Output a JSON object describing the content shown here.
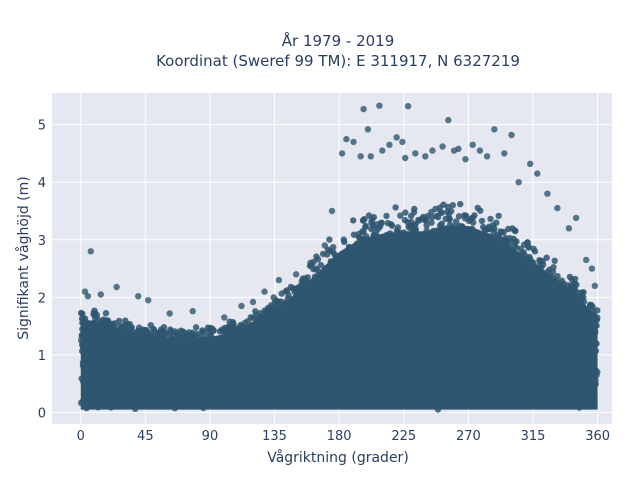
{
  "chart_data": {
    "type": "scatter",
    "title": "År 1979 - 2019",
    "subtitle": "Koordinat (Sweref 99 TM): E 311917, N 6327219",
    "xlabel": "Vågriktning (grader)",
    "ylabel": "Signifikant våghöjd (m)",
    "xlim": [
      -20,
      370
    ],
    "ylim": [
      -0.2,
      5.55
    ],
    "x_ticks": [
      0,
      45,
      90,
      135,
      180,
      225,
      270,
      315,
      360
    ],
    "y_ticks": [
      0,
      1,
      2,
      3,
      4,
      5
    ],
    "grid": true,
    "legend": "none",
    "marker_color": "#2f5670",
    "plot_bg": "#e5e8f0",
    "envelope": {
      "x": [
        0,
        15,
        30,
        45,
        60,
        75,
        90,
        105,
        120,
        135,
        150,
        165,
        180,
        195,
        210,
        225,
        240,
        255,
        270,
        285,
        300,
        315,
        330,
        345,
        360
      ],
      "upper": [
        1.8,
        1.75,
        1.6,
        1.5,
        1.45,
        1.45,
        1.45,
        1.55,
        1.75,
        2.0,
        2.3,
        2.7,
        3.1,
        3.35,
        3.45,
        3.5,
        3.5,
        3.6,
        3.6,
        3.45,
        3.2,
        2.9,
        2.6,
        2.3,
        1.8
      ]
    },
    "outliers": [
      [
        7,
        2.8
      ],
      [
        3,
        2.1
      ],
      [
        25,
        2.18
      ],
      [
        40,
        2.02
      ],
      [
        47,
        1.95
      ],
      [
        5,
        2.02
      ],
      [
        14,
        2.05
      ],
      [
        62,
        1.72
      ],
      [
        78,
        1.76
      ],
      [
        100,
        1.65
      ],
      [
        112,
        1.85
      ],
      [
        120,
        1.92
      ],
      [
        128,
        2.1
      ],
      [
        138,
        2.3
      ],
      [
        150,
        2.4
      ],
      [
        160,
        2.6
      ],
      [
        170,
        2.9
      ],
      [
        175,
        3.5
      ],
      [
        182,
        4.5
      ],
      [
        185,
        4.75
      ],
      [
        190,
        4.7
      ],
      [
        195,
        4.45
      ],
      [
        197,
        5.27
      ],
      [
        200,
        4.92
      ],
      [
        202,
        4.45
      ],
      [
        208,
        5.33
      ],
      [
        210,
        4.55
      ],
      [
        215,
        4.65
      ],
      [
        220,
        4.78
      ],
      [
        224,
        4.7
      ],
      [
        226,
        4.42
      ],
      [
        228,
        5.32
      ],
      [
        233,
        4.5
      ],
      [
        240,
        4.45
      ],
      [
        245,
        4.55
      ],
      [
        252,
        4.62
      ],
      [
        256,
        5.08
      ],
      [
        260,
        4.55
      ],
      [
        263,
        4.58
      ],
      [
        268,
        4.4
      ],
      [
        273,
        4.65
      ],
      [
        278,
        4.55
      ],
      [
        283,
        4.45
      ],
      [
        288,
        4.92
      ],
      [
        295,
        4.5
      ],
      [
        300,
        4.82
      ],
      [
        305,
        4.0
      ],
      [
        313,
        4.32
      ],
      [
        318,
        4.15
      ],
      [
        325,
        3.8
      ],
      [
        332,
        3.55
      ],
      [
        340,
        3.2
      ],
      [
        345,
        3.38
      ],
      [
        352,
        2.65
      ],
      [
        356,
        2.5
      ],
      [
        358,
        2.2
      ]
    ]
  }
}
